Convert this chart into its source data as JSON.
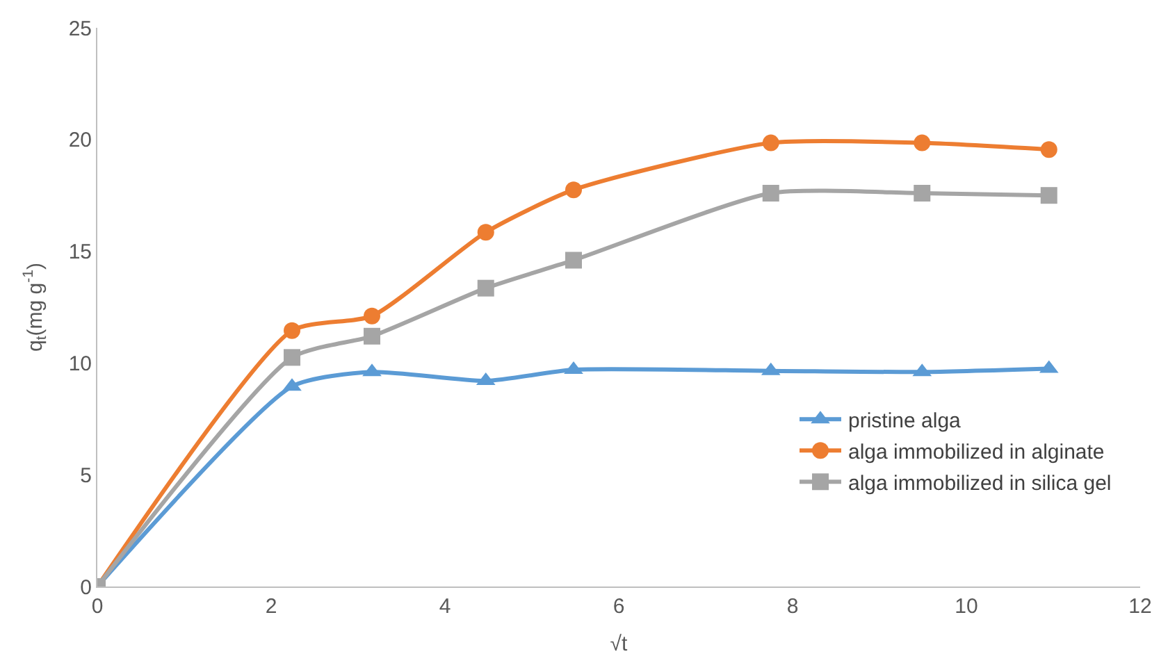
{
  "chart_data": {
    "type": "line",
    "xlabel": "√t",
    "ylabel": "q$_{t}$(mg g$^{-1}$)",
    "x": [
      0,
      2.24,
      3.16,
      4.47,
      5.48,
      7.75,
      9.49,
      10.95
    ],
    "series": [
      {
        "name": "pristine alga",
        "color": "#5b9bd5",
        "marker": "triangle",
        "values": [
          0,
          8.95,
          9.6,
          9.2,
          9.7,
          9.65,
          9.6,
          9.75
        ]
      },
      {
        "name": "alga immobilized in alginate",
        "color": "#ed7d31",
        "marker": "circle",
        "values": [
          0,
          11.45,
          12.1,
          15.85,
          17.75,
          19.85,
          19.85,
          19.55
        ]
      },
      {
        "name": "alga immobilized in silica gel",
        "color": "#a5a5a5",
        "marker": "square",
        "values": [
          0,
          10.25,
          11.2,
          13.35,
          14.6,
          17.6,
          17.6,
          17.5
        ]
      }
    ],
    "xlim": [
      0,
      12
    ],
    "xticks": [
      0,
      2,
      4,
      6,
      8,
      10,
      12
    ],
    "ylim": [
      0,
      25
    ],
    "yticks": [
      0,
      5,
      10,
      15,
      20,
      25
    ],
    "grid": false,
    "legend": "right"
  }
}
